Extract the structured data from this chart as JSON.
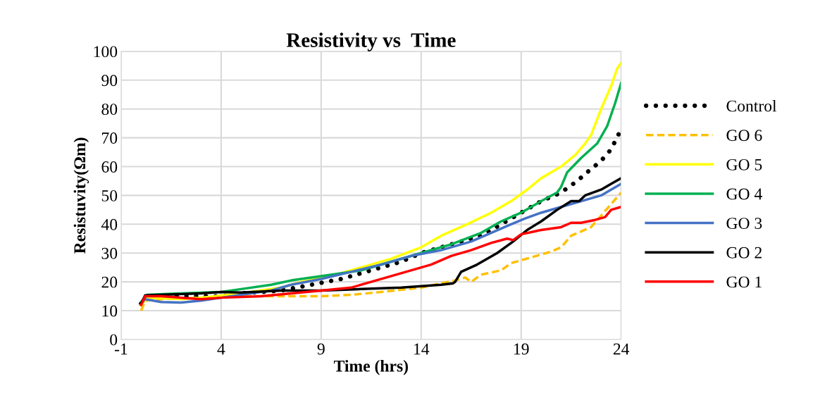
{
  "chart_data": {
    "type": "line",
    "title": "Resistivity vs  Time",
    "xlabel": "Time (hrs)",
    "ylabel": "Resistuvity(Ωm)",
    "xlim": [
      -1,
      24
    ],
    "xticks": [
      -1,
      4,
      9,
      14,
      19,
      24
    ],
    "ylim": [
      0,
      100
    ],
    "yticks": [
      0,
      10,
      20,
      30,
      40,
      50,
      60,
      70,
      80,
      90,
      100
    ],
    "grid": true,
    "legend": "right",
    "marker": "none",
    "series": [
      {
        "name": "Control",
        "color": "#000000",
        "line_style": "dotted",
        "x": [
          0,
          0.3,
          2,
          4,
          5,
          7,
          8.5,
          10,
          11.5,
          13,
          14,
          15.5,
          17,
          18,
          19,
          20,
          21,
          21.8,
          22.3,
          23,
          23.5,
          24
        ],
        "values": [
          12.5,
          15,
          15,
          15,
          16,
          17,
          19,
          21,
          24,
          27,
          30,
          33,
          36,
          40,
          44,
          48,
          51,
          55,
          58,
          62,
          66,
          73
        ]
      },
      {
        "name": "GO 6",
        "color": "#ffc000",
        "line_style": "dashed",
        "x": [
          0,
          0.2,
          1,
          3,
          5,
          7,
          9,
          10.5,
          12,
          14,
          15,
          15.7,
          16.2,
          16.5,
          17,
          18,
          18.5,
          19.5,
          20.5,
          21,
          21.5,
          22.5,
          23,
          23.5,
          24
        ],
        "values": [
          10,
          13.5,
          14,
          14.5,
          15,
          15,
          15,
          15.5,
          16.5,
          18,
          19.5,
          20.5,
          21.5,
          20,
          22.5,
          24,
          26.5,
          28.5,
          30.5,
          32,
          36,
          39,
          43,
          47,
          51
        ]
      },
      {
        "name": "GO 5",
        "color": "#ffff00",
        "line_style": "solid",
        "x": [
          0,
          0.3,
          2,
          3,
          5,
          7,
          8,
          9.5,
          11,
          12.5,
          14,
          15,
          16.3,
          17.5,
          18.5,
          19.3,
          20,
          21,
          21.7,
          22.2,
          22.5,
          23,
          23.5,
          23.8,
          24
        ],
        "values": [
          12,
          14.5,
          14,
          14.5,
          16,
          18,
          20,
          22,
          25,
          28,
          32,
          36,
          40,
          44,
          48,
          52,
          56,
          60,
          64,
          68,
          71,
          80,
          88,
          94,
          96
        ]
      },
      {
        "name": "GO 4",
        "color": "#00b050",
        "line_style": "solid",
        "x": [
          0,
          0.3,
          2,
          4,
          5,
          6.5,
          7.5,
          9,
          11,
          12.5,
          14,
          15.5,
          17,
          18,
          19,
          20,
          20.8,
          21,
          21.3,
          22,
          22.8,
          23.3,
          23.7,
          24
        ],
        "values": [
          13,
          15.5,
          16,
          16.5,
          17.5,
          19,
          20.5,
          22,
          24,
          27,
          30,
          33,
          37,
          41,
          44,
          48,
          51,
          53,
          58,
          63,
          68,
          74,
          82,
          89
        ]
      },
      {
        "name": "GO 3",
        "color": "#4472c4",
        "line_style": "solid",
        "x": [
          0,
          0.2,
          1,
          2,
          3,
          4,
          5,
          6.5,
          7.5,
          9,
          10.5,
          12,
          13.5,
          15,
          16.5,
          17.5,
          18.5,
          19.2,
          20,
          21,
          22,
          23,
          24
        ],
        "values": [
          12.5,
          14,
          13,
          12.8,
          13.5,
          14.5,
          15.5,
          17,
          19,
          21,
          23.5,
          26,
          29,
          31,
          34,
          37,
          40,
          42,
          44,
          46,
          48,
          50,
          54
        ]
      },
      {
        "name": "GO 2",
        "color": "#000000",
        "line_style": "solid",
        "x": [
          0,
          0.2,
          1,
          3,
          4,
          5,
          7,
          9,
          11,
          13,
          15,
          15.6,
          15.7,
          16,
          16.8,
          17.8,
          18.6,
          19.3,
          20,
          20.8,
          21.5,
          21.9,
          22.2,
          23,
          23.5,
          24
        ],
        "values": [
          12.5,
          15.3,
          15.5,
          16,
          16.5,
          16.3,
          17,
          17,
          17.5,
          18,
          19,
          19.5,
          20,
          23.5,
          26,
          30,
          34,
          38,
          41,
          45,
          48,
          48,
          50,
          52,
          54,
          56
        ]
      },
      {
        "name": "GO 1",
        "color": "#ff0000",
        "line_style": "solid",
        "x": [
          0,
          0.2,
          1,
          3,
          4,
          6,
          7.5,
          9,
          10.5,
          11.5,
          13,
          14.5,
          15.5,
          16.5,
          17.5,
          18.3,
          18.6,
          19,
          20,
          21,
          21.5,
          22,
          22.7,
          23.2,
          23.5,
          24
        ],
        "values": [
          12,
          15,
          15,
          14,
          14.5,
          15,
          16,
          17,
          18,
          20,
          23,
          26,
          29,
          31,
          33.5,
          35,
          34.5,
          36.5,
          38,
          39,
          40.5,
          40.5,
          41.5,
          42.5,
          45,
          46
        ]
      }
    ]
  }
}
